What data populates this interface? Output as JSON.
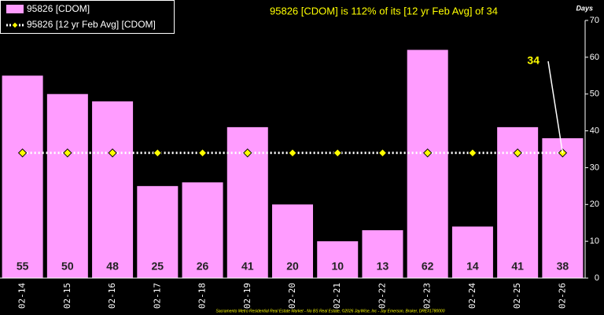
{
  "chart_data": {
    "type": "bar",
    "title": "95826 [CDOM] is 112% of its [12 yr Feb Avg] of 34",
    "y_axis_label": "Days",
    "categories": [
      "02-14",
      "02-15",
      "02-16",
      "02-17",
      "02-18",
      "02-19",
      "02-20",
      "02-21",
      "02-22",
      "02-23",
      "02-24",
      "02-25",
      "02-26"
    ],
    "series": [
      {
        "name": "95826 [CDOM]",
        "color": "#ff9cff",
        "values": [
          55,
          50,
          48,
          25,
          26,
          41,
          20,
          10,
          13,
          62,
          14,
          41,
          38
        ]
      },
      {
        "name": "95826 [12 yr Feb Avg] [CDOM]",
        "color": "#ffff00",
        "type": "line",
        "values": [
          34,
          34,
          34,
          34,
          34,
          34,
          34,
          34,
          34,
          34,
          34,
          34,
          34
        ]
      }
    ],
    "annotation": "34",
    "ylim": [
      0,
      70
    ],
    "yticks": [
      0,
      10,
      20,
      30,
      40,
      50,
      60,
      70
    ],
    "footer": "Sacramento Metro Residential Real Estate Market - No BS Real Estate, ©2026 JayWise, Inc - Jay Emerson, Broker, DRE#1780000"
  }
}
